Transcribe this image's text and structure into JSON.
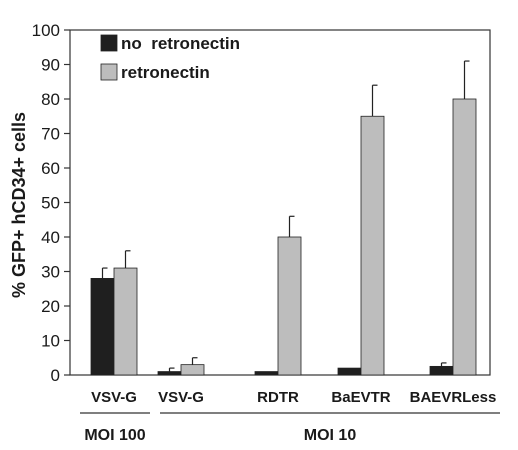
{
  "chart_data": {
    "type": "bar",
    "title": "",
    "xlabel": "",
    "ylabel": "% GFP+ hCD34+ cells",
    "ylim": [
      0,
      100
    ],
    "yticks": [
      0,
      10,
      20,
      30,
      40,
      50,
      60,
      70,
      80,
      90,
      100
    ],
    "grid": false,
    "legend": "top-left",
    "categories": [
      "VSV-G",
      "VSV-G",
      "RDTR",
      "BaEVTR",
      "BAEVRLess"
    ],
    "groups": [
      {
        "label": "MOI 100",
        "categories": [
          0
        ]
      },
      {
        "label": "MOI 10",
        "categories": [
          1,
          2,
          3,
          4
        ]
      }
    ],
    "series": [
      {
        "name": "no  retronectin",
        "color": "#1f1f1f",
        "values": [
          28,
          1,
          1,
          2,
          2.5
        ],
        "errors": [
          3,
          1,
          0,
          0,
          1
        ]
      },
      {
        "name": "retronectin",
        "color": "#bdbdbd",
        "values": [
          31,
          3,
          40,
          75,
          80
        ],
        "errors": [
          5,
          2,
          6,
          9,
          11
        ]
      }
    ]
  }
}
